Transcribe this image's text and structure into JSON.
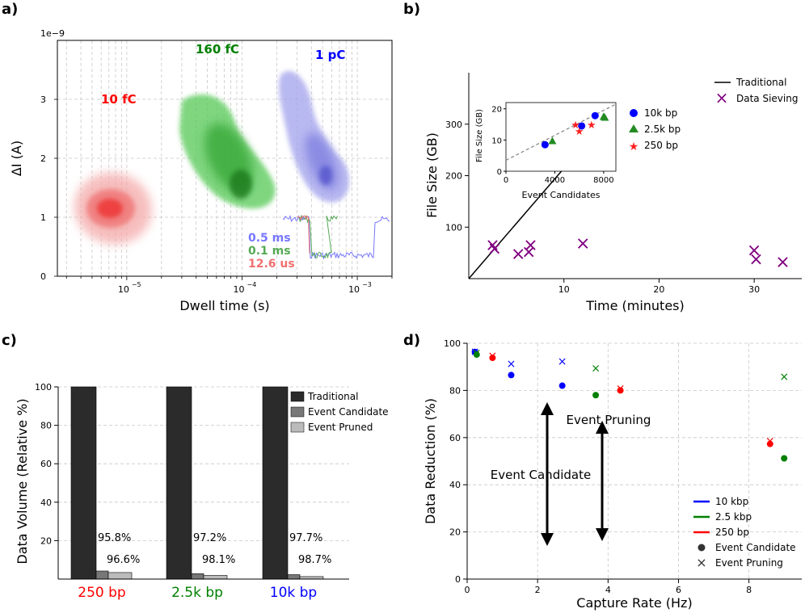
{
  "chart_data": [
    {
      "panel": "a)",
      "type": "scatter",
      "subtype": "density-contour",
      "xlabel": "Dwell time (s)",
      "ylabel": "ΔI (A)",
      "xscale": "log",
      "xlim": [
        2.5e-06,
        0.002
      ],
      "ylim": [
        0,
        4e-09
      ],
      "y_offset_label": "1e−9",
      "x_tick_labels": [
        "10",
        "10",
        "10"
      ],
      "x_tick_exps": [
        "−5",
        "−4",
        "−3"
      ],
      "y_tick_labels": [
        "0",
        "1",
        "2",
        "3"
      ],
      "clusters": [
        {
          "name": "10 fC",
          "center_dwell_s": 8e-06,
          "center_dI": 1.15e-09,
          "color": "#ff0000",
          "fill": "#f08080"
        },
        {
          "name": "160 fC",
          "center_dwell_s": 9e-05,
          "center_dI": 1.7e-09,
          "color": "#008000",
          "fill": "#3cbb3c"
        },
        {
          "name": "1 pC",
          "center_dwell_s": 0.0007,
          "center_dI": 1.8e-09,
          "color": "#0000ff",
          "fill": "#8888ee"
        }
      ],
      "inset_traces": [
        {
          "label": "0.5 ms",
          "color": "#7777ff"
        },
        {
          "label": "0.1 ms",
          "color": "#55aa55"
        },
        {
          "label": "12.6 us",
          "color": "#f07070"
        }
      ]
    },
    {
      "panel": "b)",
      "type": "line",
      "xlabel": "Time (minutes)",
      "ylabel": "File Size (GB)",
      "xlim": [
        0,
        35
      ],
      "ylim": [
        0,
        400
      ],
      "x_ticks": [
        10,
        20,
        30
      ],
      "y_ticks": [
        100,
        200,
        300
      ],
      "series": [
        {
          "name": "Traditional",
          "kind": "line",
          "x": [
            0,
            14
          ],
          "y": [
            0,
            300
          ],
          "color": "#000000"
        },
        {
          "name": "Data Sieving",
          "kind": "scatter",
          "marker": "x",
          "color": "#800080",
          "x": [
            2.5,
            2.7,
            5.2,
            6.3,
            6.5,
            12,
            30,
            30.2,
            33
          ],
          "y": [
            65,
            58,
            48,
            52,
            65,
            68,
            55,
            38,
            32
          ]
        }
      ],
      "inset": {
        "xlabel": "Event Candidates",
        "ylabel": "File Size (GB)",
        "xlim": [
          0,
          9000
        ],
        "ylim": [
          0,
          22
        ],
        "x_ticks": [
          0,
          4000,
          8000
        ],
        "y_ticks": [
          0,
          10,
          20
        ],
        "fit_line": {
          "x": [
            0,
            9000
          ],
          "y": [
            3.5,
            21.5
          ]
        },
        "series": [
          {
            "name": "10k bp",
            "marker": "o",
            "color": "#0000ff",
            "x": [
              3200,
              6200,
              7300
            ],
            "y": [
              8.5,
              14.5,
              17.8
            ]
          },
          {
            "name": "2.5k bp",
            "marker": "^",
            "color": "#228b22",
            "x": [
              3800,
              8000,
              8100
            ],
            "y": [
              9.7,
              17.5,
              17.2
            ]
          },
          {
            "name": "250 bp",
            "marker": "*",
            "color": "#ff2020",
            "x": [
              5700,
              6000,
              7000
            ],
            "y": [
              15,
              13,
              15
            ]
          }
        ]
      }
    },
    {
      "panel": "c)",
      "type": "bar",
      "xlabel": "",
      "ylabel": "Data Volume (Relative %)",
      "ylim": [
        0,
        100
      ],
      "y_ticks": [
        20,
        40,
        60,
        80,
        100
      ],
      "categories": [
        "250 bp",
        "2.5k bp",
        "10k bp"
      ],
      "category_colors": [
        "#ff0000",
        "#008000",
        "#0000ff"
      ],
      "series": [
        {
          "name": "Traditional",
          "values": [
            100,
            100,
            100
          ],
          "color": "#2b2b2b"
        },
        {
          "name": "Event Candidate",
          "values": [
            4.2,
            2.8,
            2.3
          ],
          "color": "#777777"
        },
        {
          "name": "Event Pruned",
          "values": [
            3.4,
            1.9,
            1.3
          ],
          "color": "#bbbbbb"
        }
      ],
      "annotations": [
        {
          "category": "250 bp",
          "series": "Event Candidate",
          "text": "95.8%"
        },
        {
          "category": "250 bp",
          "series": "Event Pruned",
          "text": "96.6%"
        },
        {
          "category": "2.5k bp",
          "series": "Event Candidate",
          "text": "97.2%"
        },
        {
          "category": "2.5k bp",
          "series": "Event Pruned",
          "text": "98.1%"
        },
        {
          "category": "10k bp",
          "series": "Event Candidate",
          "text": "97.7%"
        },
        {
          "category": "10k bp",
          "series": "Event Pruned",
          "text": "98.7%"
        }
      ]
    },
    {
      "panel": "d)",
      "type": "scatter",
      "xlabel": "Capture Rate (Hz)",
      "ylabel": "Data Reduction (%)",
      "xlim": [
        0,
        9.5
      ],
      "ylim": [
        0,
        100
      ],
      "x_ticks": [
        0,
        2,
        4,
        6,
        8
      ],
      "y_ticks": [
        0,
        20,
        40,
        60,
        80,
        100
      ],
      "series": [
        {
          "name": "10 kbp",
          "color": "#0000ff",
          "candidate": {
            "x": [
              0.22,
              1.25,
              2.7
            ],
            "y": [
              96.3,
              86.5,
              82.0
            ]
          },
          "pruning": {
            "x": [
              0.22,
              1.25,
              2.7
            ],
            "y": [
              96.5,
              91.5,
              92.5
            ]
          }
        },
        {
          "name": "2.5 kbp",
          "color": "#008000",
          "candidate": {
            "x": [
              0.27,
              3.65,
              9.0
            ],
            "y": [
              95.2,
              78.0,
              51.2
            ]
          },
          "pruning": {
            "x": [
              0.27,
              3.65,
              9.0
            ],
            "y": [
              96.0,
              89.5,
              86.0
            ]
          }
        },
        {
          "name": "250 bp",
          "color": "#ff0000",
          "candidate": {
            "x": [
              0.72,
              4.35,
              8.6
            ],
            "y": [
              93.8,
              80.0,
              57.3
            ]
          },
          "pruning": {
            "x": [
              0.72,
              4.35,
              8.6
            ],
            "y": [
              94.8,
              81.0,
              58.8
            ]
          }
        }
      ],
      "legend_markers": [
        "Event Candidate",
        "Event Pruning"
      ],
      "annotations": [
        "Event Candidate",
        "Event Pruning"
      ]
    }
  ]
}
